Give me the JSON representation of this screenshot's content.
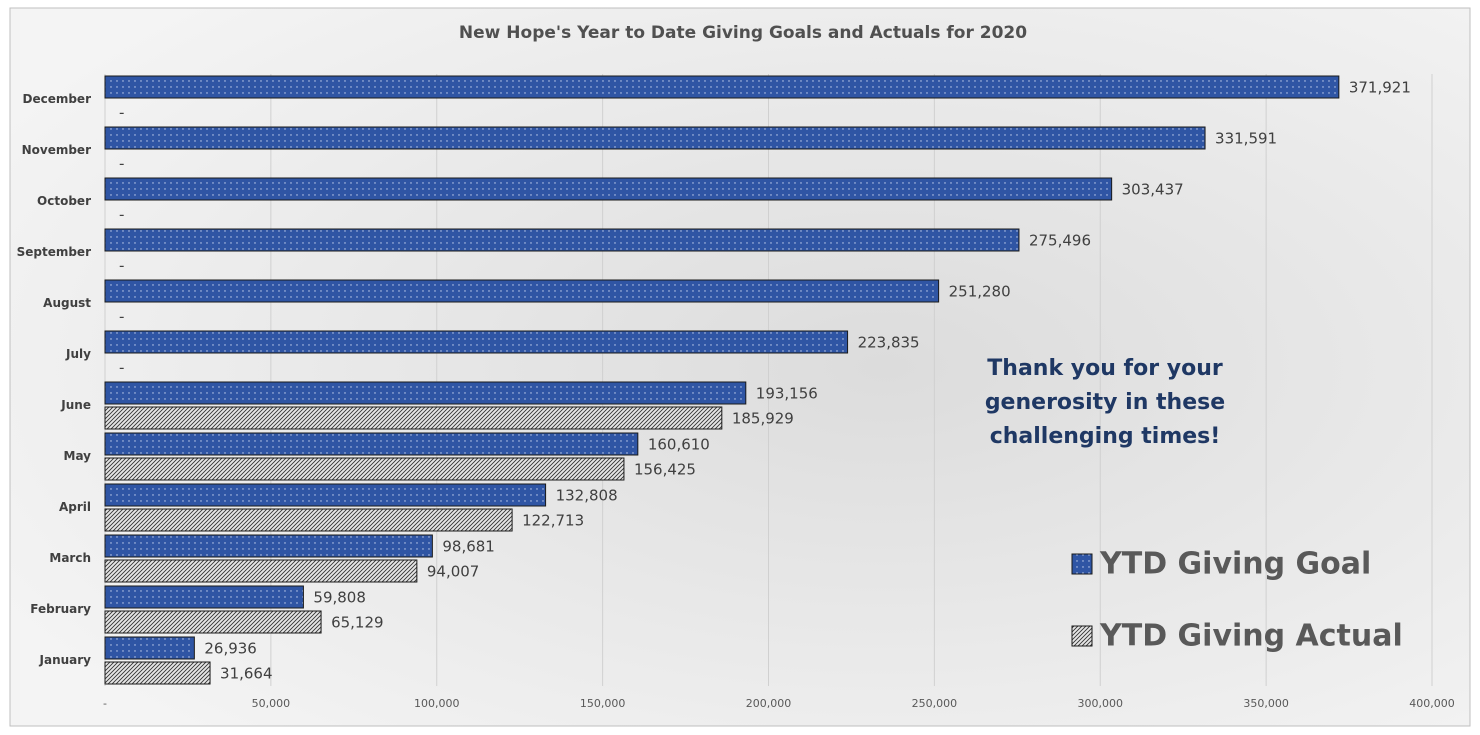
{
  "chart_data": {
    "type": "bar",
    "orientation": "horizontal",
    "title": "New Hope's Year to Date Giving Goals and Actuals for 2020",
    "categories": [
      "January",
      "February",
      "March",
      "April",
      "May",
      "June",
      "July",
      "August",
      "September",
      "October",
      "November",
      "December"
    ],
    "series": [
      {
        "name": "YTD Giving Goal",
        "color": "#2f55a4",
        "values": [
          26936,
          59808,
          98681,
          132808,
          160610,
          193156,
          223835,
          251280,
          275496,
          303437,
          331591,
          371921
        ],
        "value_labels": [
          "26,936",
          "59,808",
          "98,681",
          "132,808",
          "160,610",
          "193,156",
          "223,835",
          "251,280",
          "275,496",
          "303,437",
          "331,591",
          "371,921"
        ]
      },
      {
        "name": "YTD Giving Actual",
        "color": "#e6e6e6",
        "values": [
          31664,
          65129,
          94007,
          122713,
          156425,
          185929,
          0,
          0,
          0,
          0,
          0,
          0
        ],
        "value_labels": [
          "31,664",
          "65,129",
          "94,007",
          "122,713",
          "156,425",
          "185,929",
          "-",
          "-",
          "-",
          "-",
          "-",
          "-"
        ]
      }
    ],
    "xlim": [
      0,
      400000
    ],
    "xticks": [
      {
        "value": 0,
        "label": "-"
      },
      {
        "value": 50000,
        "label": "50,000"
      },
      {
        "value": 100000,
        "label": "100,000"
      },
      {
        "value": 150000,
        "label": "150,000"
      },
      {
        "value": 200000,
        "label": "200,000"
      },
      {
        "value": 250000,
        "label": "250,000"
      },
      {
        "value": 300000,
        "label": "300,000"
      },
      {
        "value": 350000,
        "label": "350,000"
      },
      {
        "value": 400000,
        "label": "400,000"
      }
    ],
    "grid": true,
    "legend": "bottom-right",
    "annotation": [
      "Thank you for your",
      "generosity in these",
      "challenging times!"
    ]
  }
}
